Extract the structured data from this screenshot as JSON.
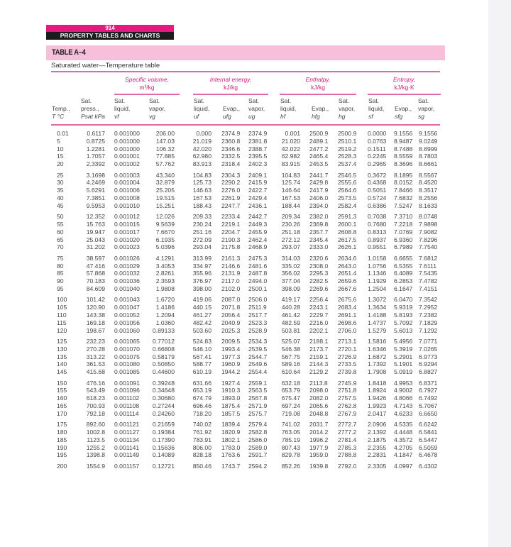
{
  "page_header": {
    "page_number": "914",
    "title": "PROPERTY TABLES AND CHARTS"
  },
  "table": {
    "label": "TABLE A–4",
    "subtitle": "Saturated water—Temperature table",
    "groups": [
      {
        "name": "Specific volume,",
        "unit": "m³/kg"
      },
      {
        "name": "Internal energy,",
        "unit": "kJ/kg"
      },
      {
        "name": "Enthalpy,",
        "unit": "kJ/kg"
      },
      {
        "name": "Entropy,",
        "unit": "kJ/kg·K"
      }
    ],
    "columns": [
      {
        "l1": "",
        "l2": "Temp.,",
        "l3": "T °C"
      },
      {
        "l1": "Sat.",
        "l2": "press.,",
        "l3": "Psat kPa"
      },
      {
        "l1": "Sat.",
        "l2": "liquid,",
        "l3": "vf"
      },
      {
        "l1": "Sat.",
        "l2": "vapor,",
        "l3": "vg"
      },
      {
        "l1": "Sat.",
        "l2": "liquid,",
        "l3": "uf"
      },
      {
        "l1": "",
        "l2": "Evap.,",
        "l3": "ufg"
      },
      {
        "l1": "Sat.",
        "l2": "vapor,",
        "l3": "ug"
      },
      {
        "l1": "Sat.",
        "l2": "liquid,",
        "l3": "hf"
      },
      {
        "l1": "",
        "l2": "Evap.,",
        "l3": "hfg"
      },
      {
        "l1": "Sat.",
        "l2": "vapor,",
        "l3": "hg"
      },
      {
        "l1": "Sat.",
        "l2": "liquid,",
        "l3": "sf"
      },
      {
        "l1": "",
        "l2": "Evap.,",
        "l3": "sfg"
      },
      {
        "l1": "Sat.",
        "l2": "vapor,",
        "l3": "sg"
      }
    ],
    "rows": [
      [
        "0.01",
        "0.6117",
        "0.001000",
        "206.00",
        "0.000",
        "2374.9",
        "2374.9",
        "0.001",
        "2500.9",
        "2500.9",
        "0.0000",
        "9.1556",
        "9.1556"
      ],
      [
        "5",
        "0.8725",
        "0.001000",
        "147.03",
        "21.019",
        "2360.8",
        "2381.8",
        "21.020",
        "2489.1",
        "2510.1",
        "0.0763",
        "8.9487",
        "9.0249"
      ],
      [
        "10",
        "1.2281",
        "0.001000",
        "106.32",
        "42.020",
        "2346.6",
        "2388.7",
        "42.022",
        "2477.2",
        "2519.2",
        "0.1511",
        "8.7488",
        "8.8999"
      ],
      [
        "15",
        "1.7057",
        "0.001001",
        "77.885",
        "62.980",
        "2332.5",
        "2395.5",
        "62.982",
        "2465.4",
        "2528.3",
        "0.2245",
        "8.5559",
        "8.7803"
      ],
      [
        "20",
        "2.3392",
        "0.001002",
        "57.762",
        "83.913",
        "2318.4",
        "2402.3",
        "83.915",
        "2453.5",
        "2537.4",
        "0.2965",
        "8.3696",
        "8.6661"
      ],
      [
        "25",
        "3.1698",
        "0.001003",
        "43.340",
        "104.83",
        "2304.3",
        "2409.1",
        "104.83",
        "2441.7",
        "2546.5",
        "0.3672",
        "8.1895",
        "8.5567"
      ],
      [
        "30",
        "4.2469",
        "0.001004",
        "32.879",
        "125.73",
        "2290.2",
        "2415.9",
        "125.74",
        "2429.8",
        "2555.6",
        "0.4368",
        "8.0152",
        "8.4520"
      ],
      [
        "35",
        "5.6291",
        "0.001006",
        "25.205",
        "146.63",
        "2276.0",
        "2422.7",
        "146.64",
        "2417.9",
        "2564.6",
        "0.5051",
        "7.8466",
        "8.3517"
      ],
      [
        "40",
        "7.3851",
        "0.001008",
        "19.515",
        "167.53",
        "2261.9",
        "2429.4",
        "167.53",
        "2406.0",
        "2573.5",
        "0.5724",
        "7.6832",
        "8.2556"
      ],
      [
        "45",
        "9.5953",
        "0.001010",
        "15.251",
        "188.43",
        "2247.7",
        "2436.1",
        "188.44",
        "2394.0",
        "2582.4",
        "0.6386",
        "7.5247",
        "8.1633"
      ],
      [
        "50",
        "12.352",
        "0.001012",
        "12.026",
        "209.33",
        "2233.4",
        "2442.7",
        "209.34",
        "2382.0",
        "2591.3",
        "0.7038",
        "7.3710",
        "8.0748"
      ],
      [
        "55",
        "15.763",
        "0.001015",
        "9.5639",
        "230.24",
        "2219.1",
        "2449.3",
        "230.26",
        "2369.8",
        "2600.1",
        "0.7680",
        "7.2218",
        "7.9898"
      ],
      [
        "60",
        "19.947",
        "0.001017",
        "7.6670",
        "251.16",
        "2204.7",
        "2455.9",
        "251.18",
        "2357.7",
        "2608.8",
        "0.8313",
        "7.0769",
        "7.9082"
      ],
      [
        "65",
        "25.043",
        "0.001020",
        "6.1935",
        "272.09",
        "2190.3",
        "2462.4",
        "272.12",
        "2345.4",
        "2617.5",
        "0.8937",
        "6.9360",
        "7.8296"
      ],
      [
        "70",
        "31.202",
        "0.001023",
        "5.0396",
        "293.04",
        "2175.8",
        "2468.9",
        "293.07",
        "2333.0",
        "2626.1",
        "0.9551",
        "6.7989",
        "7.7540"
      ],
      [
        "75",
        "38.597",
        "0.001026",
        "4.1291",
        "313.99",
        "2161.3",
        "2475.3",
        "314.03",
        "2320.6",
        "2634.6",
        "1.0158",
        "6.6655",
        "7.6812"
      ],
      [
        "80",
        "47.416",
        "0.001029",
        "3.4053",
        "334.97",
        "2146.6",
        "2481.6",
        "335.02",
        "2308.0",
        "2643.0",
        "1.0756",
        "6.5355",
        "7.6111"
      ],
      [
        "85",
        "57.868",
        "0.001032",
        "2.8261",
        "355.96",
        "2131.9",
        "2487.8",
        "356.02",
        "2295.3",
        "2651.4",
        "1.1346",
        "6.4089",
        "7.5435"
      ],
      [
        "90",
        "70.183",
        "0.001036",
        "2.3593",
        "376.97",
        "2117.0",
        "2494.0",
        "377.04",
        "2282.5",
        "2659.6",
        "1.1929",
        "6.2853",
        "7.4782"
      ],
      [
        "95",
        "84.609",
        "0.001040",
        "1.9808",
        "398.00",
        "2102.0",
        "2500.1",
        "398.09",
        "2269.6",
        "2667.6",
        "1.2504",
        "6.1647",
        "7.4151"
      ],
      [
        "100",
        "101.42",
        "0.001043",
        "1.6720",
        "419.06",
        "2087.0",
        "2506.0",
        "419.17",
        "2256.4",
        "2675.6",
        "1.3072",
        "6.0470",
        "7.3542"
      ],
      [
        "105",
        "120.90",
        "0.001047",
        "1.4186",
        "440.15",
        "2071.8",
        "2511.9",
        "440.28",
        "2243.1",
        "2683.4",
        "1.3634",
        "5.9319",
        "7.2952"
      ],
      [
        "110",
        "143.38",
        "0.001052",
        "1.2094",
        "461.27",
        "2056.4",
        "2517.7",
        "461.42",
        "2229.7",
        "2691.1",
        "1.4188",
        "5.8193",
        "7.2382"
      ],
      [
        "115",
        "169.18",
        "0.001056",
        "1.0360",
        "482.42",
        "2040.9",
        "2523.3",
        "482.59",
        "2216.0",
        "2698.6",
        "1.4737",
        "5.7092",
        "7.1829"
      ],
      [
        "120",
        "198.67",
        "0.001060",
        "0.89133",
        "503.60",
        "2025.3",
        "2528.9",
        "503.81",
        "2202.1",
        "2706.0",
        "1.5279",
        "5.6013",
        "7.1292"
      ],
      [
        "125",
        "232.23",
        "0.001065",
        "0.77012",
        "524.83",
        "2009.5",
        "2534.3",
        "525.07",
        "2188.1",
        "2713.1",
        "1.5816",
        "5.4956",
        "7.0771"
      ],
      [
        "130",
        "270.28",
        "0.001070",
        "0.66808",
        "546.10",
        "1993.4",
        "2539.5",
        "546.38",
        "2173.7",
        "2720.1",
        "1.6346",
        "5.3919",
        "7.0265"
      ],
      [
        "135",
        "313.22",
        "0.001075",
        "0.58179",
        "567.41",
        "1977.3",
        "2544.7",
        "567.75",
        "2159.1",
        "2726.9",
        "1.6872",
        "5.2901",
        "6.9773"
      ],
      [
        "140",
        "361.53",
        "0.001080",
        "0.50850",
        "588.77",
        "1960.9",
        "2549.6",
        "589.16",
        "2144.3",
        "2733.5",
        "1.7392",
        "5.1901",
        "6.9294"
      ],
      [
        "145",
        "415.68",
        "0.001085",
        "0.44600",
        "610.19",
        "1944.2",
        "2554.4",
        "610.64",
        "2129.2",
        "2739.8",
        "1.7908",
        "5.0919",
        "6.8827"
      ],
      [
        "150",
        "476.16",
        "0.001091",
        "0.39248",
        "631.66",
        "1927.4",
        "2559.1",
        "632.18",
        "2113.8",
        "2745.9",
        "1.8418",
        "4.9953",
        "6.8371"
      ],
      [
        "155",
        "543.49",
        "0.001096",
        "0.34648",
        "653.19",
        "1910.3",
        "2563.5",
        "653.79",
        "2098.0",
        "2751.8",
        "1.8924",
        "4.9002",
        "6.7927"
      ],
      [
        "160",
        "618.23",
        "0.001102",
        "0.30680",
        "674.79",
        "1893.0",
        "2567.8",
        "675.47",
        "2082.0",
        "2757.5",
        "1.9426",
        "4.8066",
        "6.7492"
      ],
      [
        "165",
        "700.93",
        "0.001108",
        "0.27244",
        "696.46",
        "1875.4",
        "2571.9",
        "697.24",
        "2065.6",
        "2762.8",
        "1.9923",
        "4.7143",
        "6.7067"
      ],
      [
        "170",
        "792.18",
        "0.001114",
        "0.24260",
        "718.20",
        "1857.5",
        "2575.7",
        "719.08",
        "2048.8",
        "2767.9",
        "2.0417",
        "4.6233",
        "6.6650"
      ],
      [
        "175",
        "892.60",
        "0.001121",
        "0.21659",
        "740.02",
        "1839.4",
        "2579.4",
        "741.02",
        "2031.7",
        "2772.7",
        "2.0906",
        "4.5335",
        "6.6242"
      ],
      [
        "180",
        "1002.8",
        "0.001127",
        "0.19384",
        "761.92",
        "1820.9",
        "2582.8",
        "763.05",
        "2014.2",
        "2777.2",
        "2.1392",
        "4.4448",
        "6.5841"
      ],
      [
        "185",
        "1123.5",
        "0.001134",
        "0.17390",
        "783.91",
        "1802.1",
        "2586.0",
        "785.19",
        "1996.2",
        "2781.4",
        "2.1875",
        "4.3572",
        "6.5447"
      ],
      [
        "190",
        "1255.2",
        "0.001141",
        "0.15636",
        "806.00",
        "1783.0",
        "2589.0",
        "807.43",
        "1977.9",
        "2785.3",
        "2.2355",
        "4.2705",
        "6.5059"
      ],
      [
        "195",
        "1398.8",
        "0.001149",
        "0.14089",
        "828.18",
        "1763.6",
        "2591.7",
        "829.78",
        "1959.0",
        "2788.8",
        "2.2831",
        "4.1847",
        "6.4678"
      ],
      [
        "200",
        "1554.9",
        "0.001157",
        "0.12721",
        "850.46",
        "1743.7",
        "2594.2",
        "852.26",
        "1939.8",
        "2792.0",
        "2.3305",
        "4.0997",
        "6.4302"
      ]
    ]
  },
  "colors": {
    "accent": "#e6197f",
    "title_bar": "#f7bfd9",
    "rule": "#e06aa6",
    "group_text": "#d21a7c"
  }
}
